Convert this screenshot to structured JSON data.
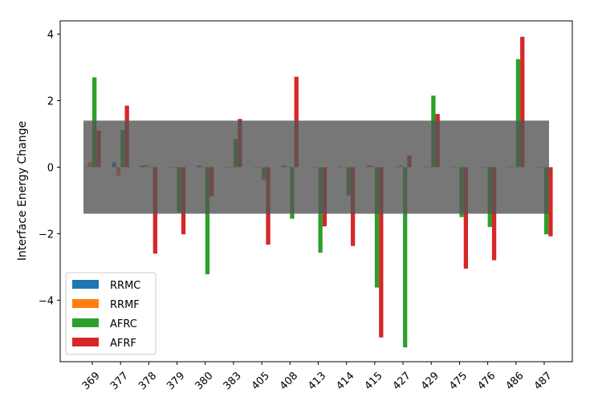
{
  "chart_data": {
    "type": "bar",
    "title": "",
    "xlabel": "",
    "ylabel": "Interface Energy Change",
    "categories": [
      "369",
      "377",
      "378",
      "379",
      "380",
      "383",
      "405",
      "408",
      "413",
      "414",
      "415",
      "427",
      "429",
      "475",
      "476",
      "486",
      "487"
    ],
    "series": [
      {
        "name": "RRMC",
        "color": "#1f77b4",
        "values": [
          0.0,
          0.15,
          0.05,
          0.0,
          0.05,
          0.0,
          0.0,
          0.05,
          0.0,
          0.02,
          0.05,
          0.0,
          0.0,
          0.0,
          0.0,
          0.0,
          0.0
        ]
      },
      {
        "name": "RRMF",
        "color": "#ff7f0e",
        "values": [
          0.15,
          -0.25,
          0.07,
          -0.03,
          0.02,
          0.0,
          0.0,
          0.0,
          0.0,
          0.0,
          0.05,
          0.05,
          0.0,
          0.0,
          0.0,
          0.0,
          0.0
        ]
      },
      {
        "name": "AFRC",
        "color": "#2ca02c",
        "values": [
          2.7,
          1.12,
          0.0,
          -1.35,
          -3.22,
          0.85,
          -0.37,
          -1.55,
          -2.57,
          -0.85,
          -3.62,
          -5.42,
          2.15,
          -1.5,
          -1.8,
          3.25,
          -2.02
        ]
      },
      {
        "name": "AFRF",
        "color": "#d62728",
        "values": [
          1.1,
          1.85,
          -2.6,
          -2.02,
          -0.88,
          1.45,
          -2.33,
          2.72,
          -1.78,
          -2.37,
          -5.12,
          0.35,
          1.6,
          -3.05,
          -2.8,
          3.92,
          -2.08
        ]
      }
    ],
    "band": {
      "ymin": -1.4,
      "ymax": 1.4,
      "color": "#555555",
      "opacity": 0.8
    },
    "ylim": [
      -5.85,
      4.4
    ],
    "yticks": [
      -4,
      -2,
      0,
      2,
      4
    ],
    "grid": false,
    "legend": "lower-left"
  }
}
